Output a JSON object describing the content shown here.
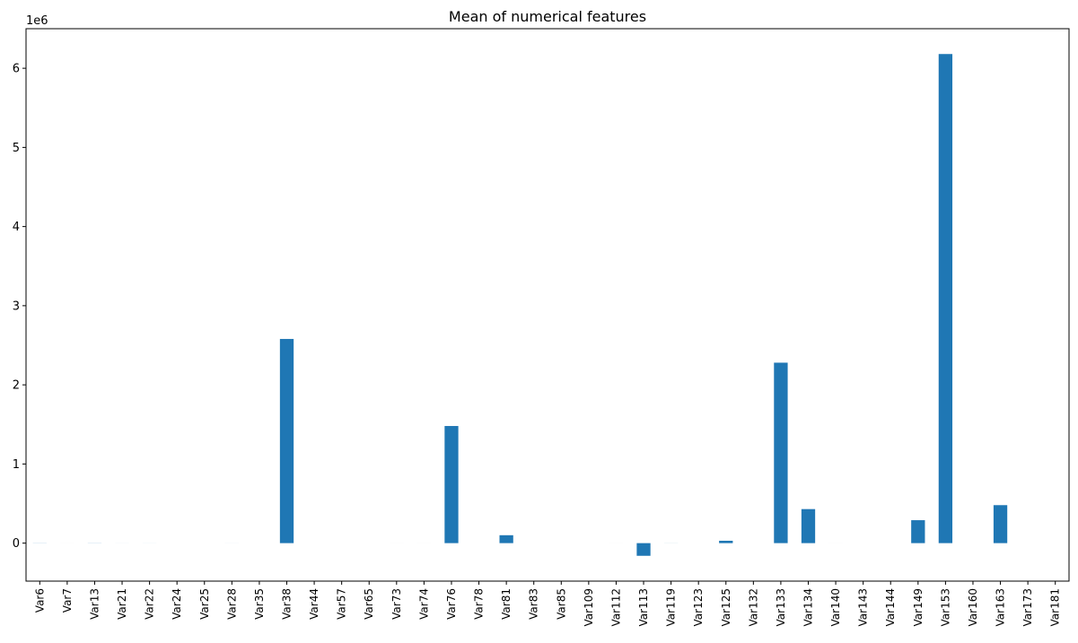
{
  "chart_data": {
    "type": "bar",
    "title": "Mean of numerical features",
    "offset_label": "1e6",
    "xlabel": "",
    "ylabel": "",
    "ylim": [
      -0.48,
      6.5
    ],
    "yticks": [
      0,
      1,
      2,
      3,
      4,
      5,
      6
    ],
    "grid": false,
    "legend": "none",
    "bar_color": "#1f77b4",
    "categories": [
      "Var6",
      "Var7",
      "Var13",
      "Var21",
      "Var22",
      "Var24",
      "Var25",
      "Var28",
      "Var35",
      "Var38",
      "Var44",
      "Var57",
      "Var65",
      "Var73",
      "Var74",
      "Var76",
      "Var78",
      "Var81",
      "Var83",
      "Var85",
      "Var109",
      "Var112",
      "Var113",
      "Var119",
      "Var123",
      "Var125",
      "Var132",
      "Var133",
      "Var134",
      "Var140",
      "Var143",
      "Var144",
      "Var149",
      "Var153",
      "Var160",
      "Var163",
      "Var173",
      "Var181"
    ],
    "values": [
      0.0013,
      0.0001,
      0.0012,
      0.0002,
      0.0003,
      1e-05,
      3e-05,
      0.0002,
      3e-06,
      2.58,
      1e-07,
      4e-06,
      1e-05,
      0.0001,
      0.0001,
      1.48,
      1e-05,
      0.1,
      2e-05,
      1e-05,
      2e-05,
      6e-05,
      -0.16,
      0.0007,
      5e-06,
      0.03,
      7e-06,
      2.28,
      0.43,
      0.00014,
      1e-05,
      4e-05,
      0.29,
      6.18,
      1e-06,
      0.48,
      1e-07,
      1e-07
    ]
  }
}
